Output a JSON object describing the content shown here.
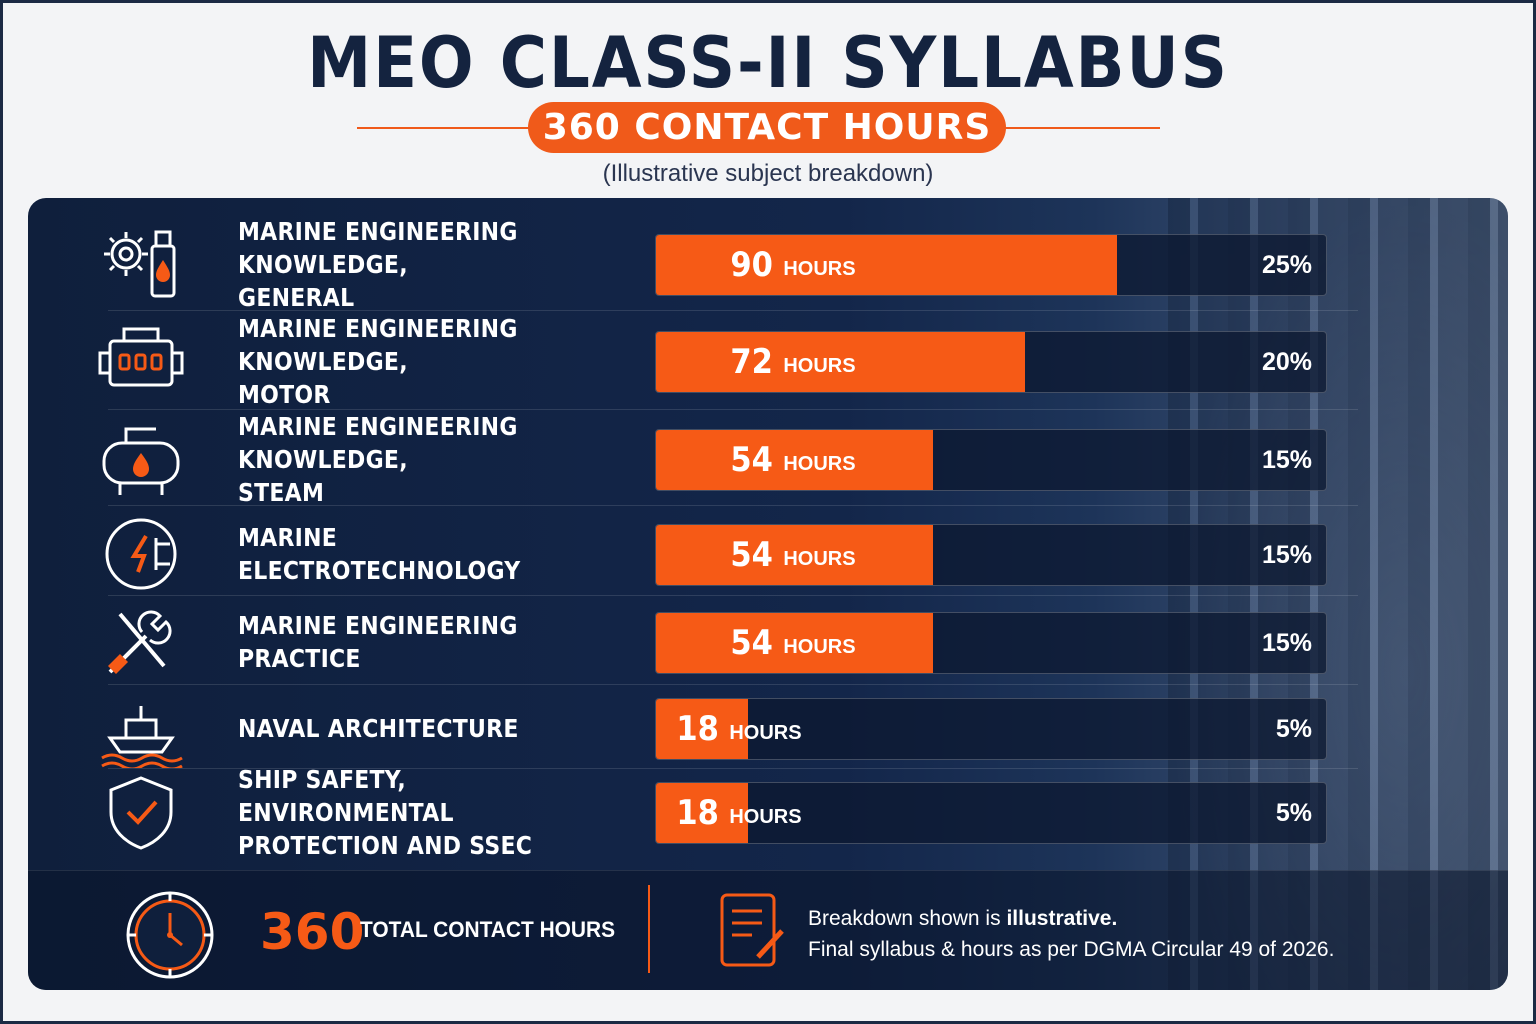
{
  "header": {
    "title": "MEO CLASS-II SYLLABUS",
    "badge": "360 CONTACT HOURS",
    "subtitle": "(Illustrative subject breakdown)"
  },
  "colors": {
    "accent": "#f65a16",
    "panel": "#13264a",
    "title": "#14233f"
  },
  "chart_data": {
    "type": "bar",
    "orientation": "horizontal",
    "unit_label": "HOURS",
    "xlim": [
      0,
      360
    ],
    "categories": [
      "MARINE ENGINEERING KNOWLEDGE, GENERAL",
      "MARINE ENGINEERING KNOWLEDGE, MOTOR",
      "MARINE ENGINEERING KNOWLEDGE, STEAM",
      "MARINE ELECTROTECHNOLOGY",
      "MARINE ENGINEERING PRACTICE",
      "NAVAL ARCHITECTURE",
      "SHIP SAFETY, ENVIRONMENTAL PROTECTION AND SSEC"
    ],
    "values": [
      90,
      72,
      54,
      54,
      54,
      18,
      18
    ],
    "percent_labels": [
      "25%",
      "20%",
      "15%",
      "15%",
      "15%",
      "5%",
      "5%"
    ],
    "icons": [
      "gear-oil-icon",
      "engine-icon",
      "boiler-icon",
      "power-plug-icon",
      "tools-icon",
      "ship-icon",
      "shield-check-icon"
    ]
  },
  "rows": [
    {
      "line1": "MARINE ENGINEERING KNOWLEDGE,",
      "line2": "GENERAL",
      "hours": "90",
      "pct": "25%"
    },
    {
      "line1": "MARINE ENGINEERING KNOWLEDGE,",
      "line2": "MOTOR",
      "hours": "72",
      "pct": "20%"
    },
    {
      "line1": "MARINE ENGINEERING KNOWLEDGE,",
      "line2": "STEAM",
      "hours": "54",
      "pct": "15%"
    },
    {
      "line1": "MARINE ELECTROTECHNOLOGY",
      "line2": "",
      "hours": "54",
      "pct": "15%"
    },
    {
      "line1": "MARINE ENGINEERING PRACTICE",
      "line2": "",
      "hours": "54",
      "pct": "15%"
    },
    {
      "line1": "NAVAL ARCHITECTURE",
      "line2": "",
      "hours": "18",
      "pct": "5%"
    },
    {
      "line1": "SHIP SAFETY, ENVIRONMENTAL",
      "line2": "PROTECTION AND SSEC",
      "hours": "18",
      "pct": "5%"
    }
  ],
  "hours_unit": "HOURS",
  "footer": {
    "total_value": "360",
    "total_label": "TOTAL CONTACT HOURS",
    "note_prefix": "Breakdown shown is ",
    "note_emphasis": "illustrative.",
    "note_line2": "Final syllabus & hours as per DGMA Circular 49 of 2026."
  }
}
